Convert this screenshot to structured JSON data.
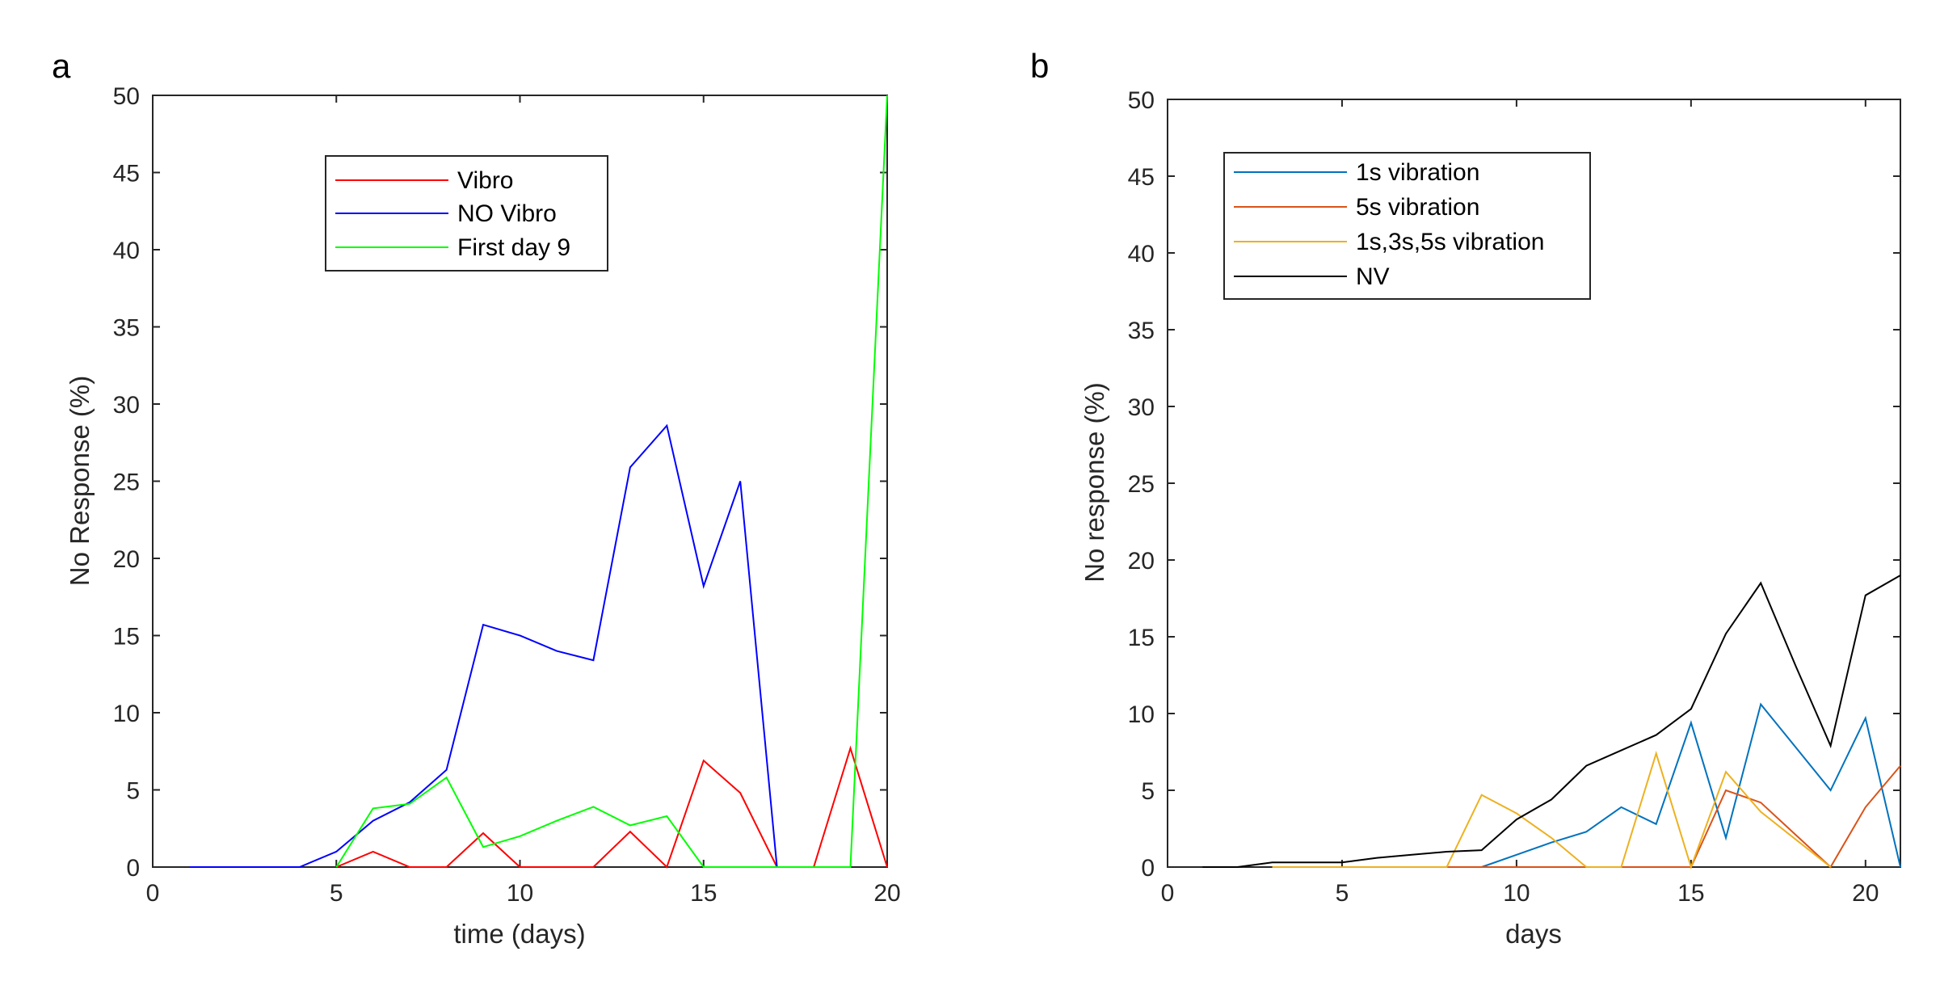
{
  "chart_data": [
    {
      "type": "line",
      "panel_label": "a",
      "title": "",
      "xlabel": "time (days)",
      "ylabel": "No Response (%)",
      "xlim": [
        0,
        20
      ],
      "ylim": [
        0,
        50
      ],
      "xticks": [
        0,
        5,
        10,
        15,
        20
      ],
      "yticks": [
        0,
        5,
        10,
        15,
        20,
        25,
        30,
        35,
        40,
        45,
        50
      ],
      "legend_position": "top-center",
      "series": [
        {
          "name": "Vibro",
          "color": "#ff0000",
          "x": [
            5,
            6,
            7,
            8,
            9,
            10,
            11,
            12,
            13,
            14,
            15,
            16,
            17,
            18,
            19,
            20
          ],
          "y": [
            0,
            1.0,
            0,
            0,
            2.2,
            0,
            0,
            0,
            2.3,
            0,
            6.9,
            4.8,
            0,
            0,
            7.7,
            0
          ]
        },
        {
          "name": "NO Vibro",
          "color": "#0000ff",
          "x": [
            1,
            2,
            3,
            4,
            5,
            6,
            7,
            8,
            9,
            10,
            11,
            12,
            13,
            14,
            15,
            16,
            17
          ],
          "y": [
            0,
            0,
            0,
            0,
            1.0,
            3.0,
            4.2,
            6.3,
            15.7,
            15.0,
            14.0,
            13.4,
            25.9,
            28.6,
            18.2,
            25.0,
            0
          ]
        },
        {
          "name": "First day 9",
          "color": "#00ff00",
          "x": [
            5,
            6,
            7,
            8,
            9,
            10,
            11,
            12,
            13,
            14,
            15,
            16,
            17,
            18,
            19,
            20
          ],
          "y": [
            0,
            3.8,
            4.1,
            5.8,
            1.3,
            2.0,
            3.0,
            3.9,
            2.7,
            3.3,
            0,
            0,
            0,
            0,
            0,
            50
          ]
        }
      ]
    },
    {
      "type": "line",
      "panel_label": "b",
      "title": "",
      "xlabel": "days",
      "ylabel": "No response (%)",
      "xlim": [
        0,
        21
      ],
      "ylim": [
        0,
        50
      ],
      "xticks": [
        0,
        5,
        10,
        15,
        20
      ],
      "yticks": [
        0,
        5,
        10,
        15,
        20,
        25,
        30,
        35,
        40,
        45,
        50
      ],
      "legend_position": "top-left",
      "series": [
        {
          "name": "1s vibration",
          "color": "#0072bd",
          "x": [
            9,
            10,
            11,
            12,
            13,
            14,
            15,
            16,
            17,
            18,
            19,
            20,
            21
          ],
          "y": [
            0,
            0.8,
            1.6,
            2.3,
            3.9,
            2.8,
            9.4,
            1.9,
            10.6,
            7.8,
            5.0,
            9.7,
            0
          ]
        },
        {
          "name": "5s vibration",
          "color": "#d95319",
          "x": [
            3,
            4,
            5,
            6,
            7,
            8,
            9,
            10,
            11,
            12,
            13,
            14,
            15,
            16,
            17,
            18,
            19,
            20,
            21
          ],
          "y": [
            0,
            0,
            0,
            0,
            0,
            0,
            0,
            0,
            0,
            0,
            0,
            0,
            0,
            5.0,
            4.2,
            2.1,
            0,
            3.9,
            6.6
          ]
        },
        {
          "name": "1s,3s,5s vibration",
          "color": "#edb120",
          "x": [
            3,
            4,
            5,
            6,
            7,
            8,
            9,
            10,
            11,
            12,
            13,
            14,
            15,
            16,
            17,
            18,
            19
          ],
          "y": [
            0,
            0,
            0,
            0,
            0,
            0,
            4.7,
            3.5,
            1.9,
            0,
            0,
            7.4,
            0,
            6.2,
            3.6,
            1.8,
            0
          ]
        },
        {
          "name": "NV",
          "color": "#000000",
          "x": [
            1,
            2,
            3,
            4,
            5,
            6,
            7,
            8,
            9,
            10,
            11,
            12,
            13,
            14,
            15,
            16,
            17,
            18,
            19,
            20,
            21
          ],
          "y": [
            0,
            0,
            0.3,
            0.3,
            0.3,
            0.6,
            0.8,
            1.0,
            1.1,
            3.1,
            4.4,
            6.6,
            7.6,
            8.6,
            10.3,
            15.2,
            18.5,
            13.1,
            7.9,
            17.7,
            19.0
          ]
        }
      ]
    }
  ]
}
